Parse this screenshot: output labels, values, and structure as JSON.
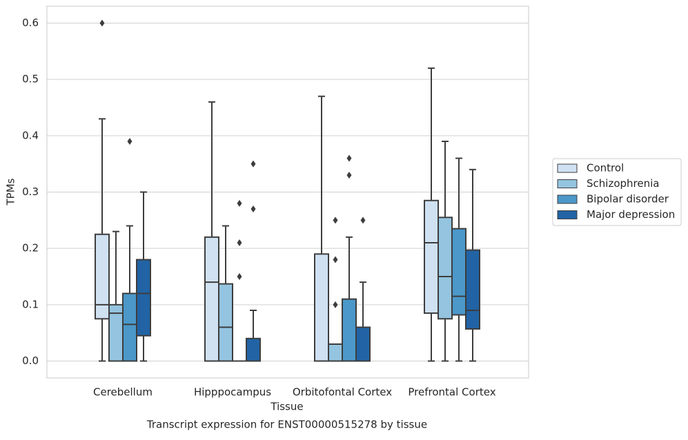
{
  "chart_data": {
    "type": "box",
    "title": "Transcript expression for ENST00000515278 by tissue",
    "xlabel": "Tissue",
    "ylabel": "TPMs",
    "categories": [
      "Cerebellum",
      "Hipppocampus",
      "Orbitofontal Cortex",
      "Prefrontal Cortex"
    ],
    "ylim": [
      -0.03,
      0.63
    ],
    "yticks": [
      {
        "value": 0,
        "label": "0.0"
      },
      {
        "value": 0.1,
        "label": "0.1"
      },
      {
        "value": 0.2,
        "label": "0.2"
      },
      {
        "value": 0.3,
        "label": "0.3"
      },
      {
        "value": 0.4,
        "label": "0.4"
      },
      {
        "value": 0.5,
        "label": "0.5"
      },
      {
        "value": 0.6,
        "label": "0.6"
      }
    ],
    "grid": true,
    "legend": "right",
    "series": [
      {
        "name": "Control",
        "color": "#d0e1f2",
        "min": [
          0,
          0,
          0,
          0
        ],
        "q1": [
          0.075,
          0,
          0,
          0.085
        ],
        "median": [
          0.1,
          0.14,
          0,
          0.21
        ],
        "q3": [
          0.225,
          0.22,
          0.19,
          0.285
        ],
        "max": [
          0.43,
          0.46,
          0.47,
          0.52
        ],
        "outliers": [
          [
            0.6
          ],
          [],
          [],
          []
        ]
      },
      {
        "name": "Schizophrenia",
        "color": "#94c4df",
        "min": [
          0,
          0,
          0,
          0
        ],
        "q1": [
          0,
          0,
          0,
          0.075
        ],
        "median": [
          0.085,
          0.06,
          0,
          0.15
        ],
        "q3": [
          0.1,
          0.137,
          0.03,
          0.255
        ],
        "max": [
          0.23,
          0.24,
          0.03,
          0.39
        ],
        "outliers": [
          [],
          [],
          [
            0.25,
            0.18,
            0.1
          ],
          []
        ]
      },
      {
        "name": "Bipolar disorder",
        "color": "#4b98c9",
        "min": [
          0,
          0,
          0,
          0
        ],
        "q1": [
          0,
          0,
          0,
          0.082
        ],
        "median": [
          0.065,
          0,
          0,
          0.115
        ],
        "q3": [
          0.12,
          0,
          0.11,
          0.235
        ],
        "max": [
          0.24,
          0,
          0.22,
          0.36
        ],
        "outliers": [
          [
            0.39
          ],
          [
            0.28,
            0.21,
            0.15
          ],
          [
            0.36,
            0.33
          ],
          []
        ]
      },
      {
        "name": "Major depression",
        "color": "#2163a5",
        "min": [
          0,
          0,
          0,
          0
        ],
        "q1": [
          0.045,
          0,
          0,
          0.057
        ],
        "median": [
          0.12,
          0,
          0,
          0.09
        ],
        "q3": [
          0.18,
          0.04,
          0.06,
          0.197
        ],
        "max": [
          0.3,
          0.09,
          0.14,
          0.34
        ],
        "outliers": [
          [],
          [
            0.35,
            0.27
          ],
          [
            0.25
          ],
          []
        ]
      }
    ]
  }
}
